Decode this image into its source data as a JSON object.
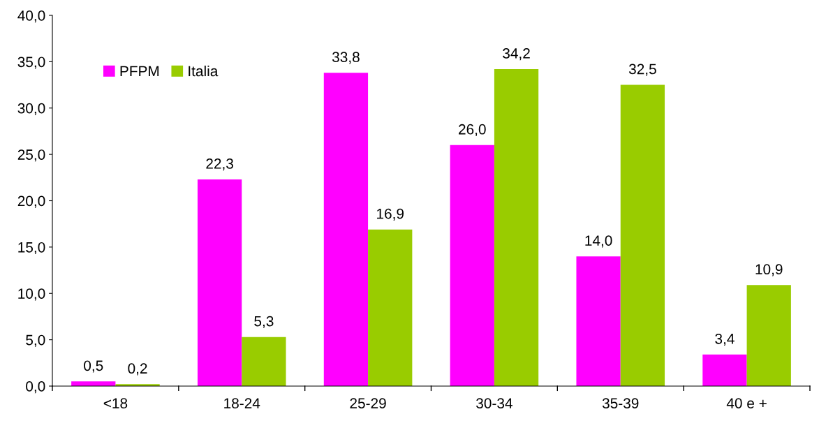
{
  "chart_data": {
    "type": "bar",
    "categories": [
      "<18",
      "18-24",
      "25-29",
      "30-34",
      "35-39",
      "40 e +"
    ],
    "series": [
      {
        "name": "PFPM",
        "color": "#ff00ff",
        "values": [
          0.5,
          22.3,
          33.8,
          26.0,
          14.0,
          3.4
        ],
        "value_labels": [
          "0,5",
          "22,3",
          "33,8",
          "26,0",
          "14,0",
          "3,4"
        ]
      },
      {
        "name": "Italia",
        "color": "#99cc00",
        "values": [
          0.2,
          5.3,
          16.9,
          34.2,
          32.5,
          10.9
        ],
        "value_labels": [
          "0,2",
          "5,3",
          "16,9",
          "34,2",
          "32,5",
          "10,9"
        ]
      }
    ],
    "ylim": [
      0,
      40
    ],
    "yticks": [
      {
        "value": 0,
        "label": "0,0"
      },
      {
        "value": 5,
        "label": "5,0"
      },
      {
        "value": 10,
        "label": "10,0"
      },
      {
        "value": 15,
        "label": "15,0"
      },
      {
        "value": 20,
        "label": "20,0"
      },
      {
        "value": 25,
        "label": "25,0"
      },
      {
        "value": 30,
        "label": "30,0"
      },
      {
        "value": 35,
        "label": "35,0"
      },
      {
        "value": 40,
        "label": "40,0"
      }
    ],
    "grid": false,
    "legend": "top left"
  }
}
